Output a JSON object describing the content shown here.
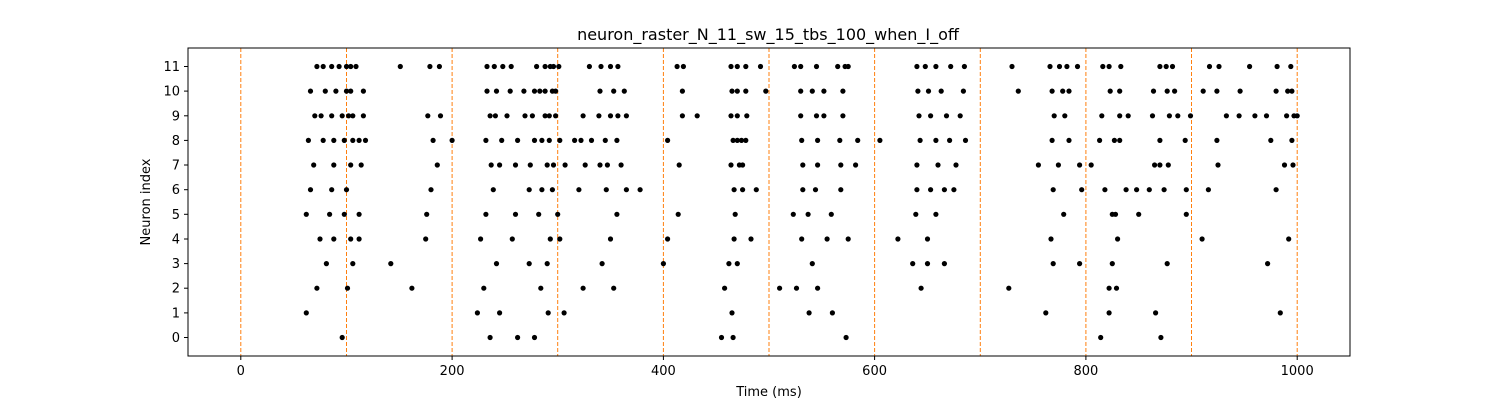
{
  "chart_data": {
    "type": "scatter",
    "title": "neuron_raster_N_11_sw_15_tbs_100_when_I_off",
    "xlabel": "Time (ms)",
    "ylabel": "Neuron index",
    "xlim": [
      -50,
      1050
    ],
    "ylim": [
      -0.75,
      11.75
    ],
    "xticks": [
      0,
      200,
      400,
      600,
      800,
      1000
    ],
    "yticks": [
      0,
      1,
      2,
      3,
      4,
      5,
      6,
      7,
      8,
      9,
      10,
      11
    ],
    "grid": false,
    "legend": "none",
    "marker_color": "#000000",
    "vline_color": "#ff7f0e",
    "vlines": [
      0,
      100,
      200,
      300,
      400,
      500,
      600,
      700,
      800,
      900,
      1000
    ],
    "spikes": [
      {
        "neuron": 0,
        "times": [
          96,
          236,
          262,
          278,
          455,
          466,
          573,
          814,
          871
        ]
      },
      {
        "neuron": 1,
        "times": [
          62,
          224,
          245,
          291,
          306,
          465,
          538,
          560,
          762,
          822,
          866,
          984
        ]
      },
      {
        "neuron": 2,
        "times": [
          72,
          101,
          162,
          230,
          284,
          324,
          353,
          458,
          510,
          526,
          546,
          644,
          727,
          822,
          829
        ]
      },
      {
        "neuron": 3,
        "times": [
          81,
          106,
          142,
          242,
          273,
          290,
          342,
          400,
          462,
          470,
          541,
          636,
          650,
          666,
          769,
          794,
          825,
          877,
          972
        ]
      },
      {
        "neuron": 4,
        "times": [
          75,
          88,
          104,
          112,
          175,
          227,
          257,
          293,
          302,
          350,
          404,
          467,
          483,
          531,
          555,
          575,
          622,
          650,
          767,
          830,
          910,
          992
        ]
      },
      {
        "neuron": 5,
        "times": [
          62,
          84,
          98,
          112,
          176,
          232,
          260,
          282,
          300,
          356,
          414,
          468,
          523,
          537,
          559,
          639,
          658,
          779,
          825,
          828,
          850,
          895
        ]
      },
      {
        "neuron": 6,
        "times": [
          66,
          86,
          100,
          180,
          239,
          273,
          285,
          295,
          320,
          346,
          365,
          378,
          467,
          475,
          488,
          532,
          544,
          568,
          640,
          653,
          666,
          675,
          769,
          796,
          818,
          838,
          848,
          860,
          874,
          895,
          916,
          980
        ]
      },
      {
        "neuron": 7,
        "times": [
          69,
          88,
          104,
          114,
          186,
          237,
          245,
          260,
          274,
          290,
          296,
          307,
          326,
          340,
          347,
          360,
          415,
          464,
          472,
          475,
          532,
          546,
          568,
          582,
          640,
          660,
          677,
          755,
          774,
          794,
          805,
          865,
          870,
          878,
          925,
          988,
          996
        ]
      },
      {
        "neuron": 8,
        "times": [
          64,
          78,
          88,
          98,
          106,
          112,
          118,
          182,
          200,
          232,
          247,
          262,
          278,
          285,
          292,
          302,
          316,
          322,
          332,
          345,
          356,
          404,
          466,
          470,
          474,
          478,
          531,
          546,
          567,
          584,
          605,
          643,
          658,
          671,
          686,
          768,
          784,
          813,
          827,
          832,
          870,
          894,
          924,
          975,
          995
        ]
      },
      {
        "neuron": 9,
        "times": [
          70,
          76,
          86,
          96,
          102,
          106,
          116,
          177,
          189,
          236,
          241,
          252,
          269,
          276,
          288,
          292,
          298,
          324,
          339,
          350,
          357,
          365,
          418,
          432,
          464,
          470,
          479,
          530,
          545,
          552,
          570,
          642,
          653,
          668,
          681,
          770,
          780,
          815,
          832,
          840,
          863,
          879,
          887,
          899,
          933,
          945,
          960,
          971,
          990,
          997,
          1000
        ]
      },
      {
        "neuron": 10,
        "times": [
          66,
          80,
          90,
          100,
          104,
          116,
          233,
          242,
          255,
          268,
          278,
          283,
          288,
          295,
          298,
          340,
          353,
          363,
          418,
          465,
          470,
          478,
          497,
          530,
          541,
          552,
          570,
          641,
          651,
          663,
          684,
          736,
          768,
          778,
          784,
          823,
          832,
          864,
          877,
          884,
          911,
          924,
          946,
          980,
          991,
          995
        ]
      },
      {
        "neuron": 11,
        "times": [
          72,
          78,
          86,
          93,
          100,
          104,
          109,
          151,
          179,
          188,
          233,
          240,
          248,
          256,
          280,
          288,
          293,
          296,
          301,
          330,
          341,
          350,
          357,
          413,
          419,
          464,
          470,
          478,
          492,
          524,
          530,
          545,
          565,
          572,
          575,
          640,
          648,
          658,
          672,
          685,
          730,
          766,
          775,
          782,
          792,
          816,
          822,
          833,
          870,
          876,
          882,
          917,
          926,
          955,
          981,
          994
        ]
      }
    ]
  }
}
